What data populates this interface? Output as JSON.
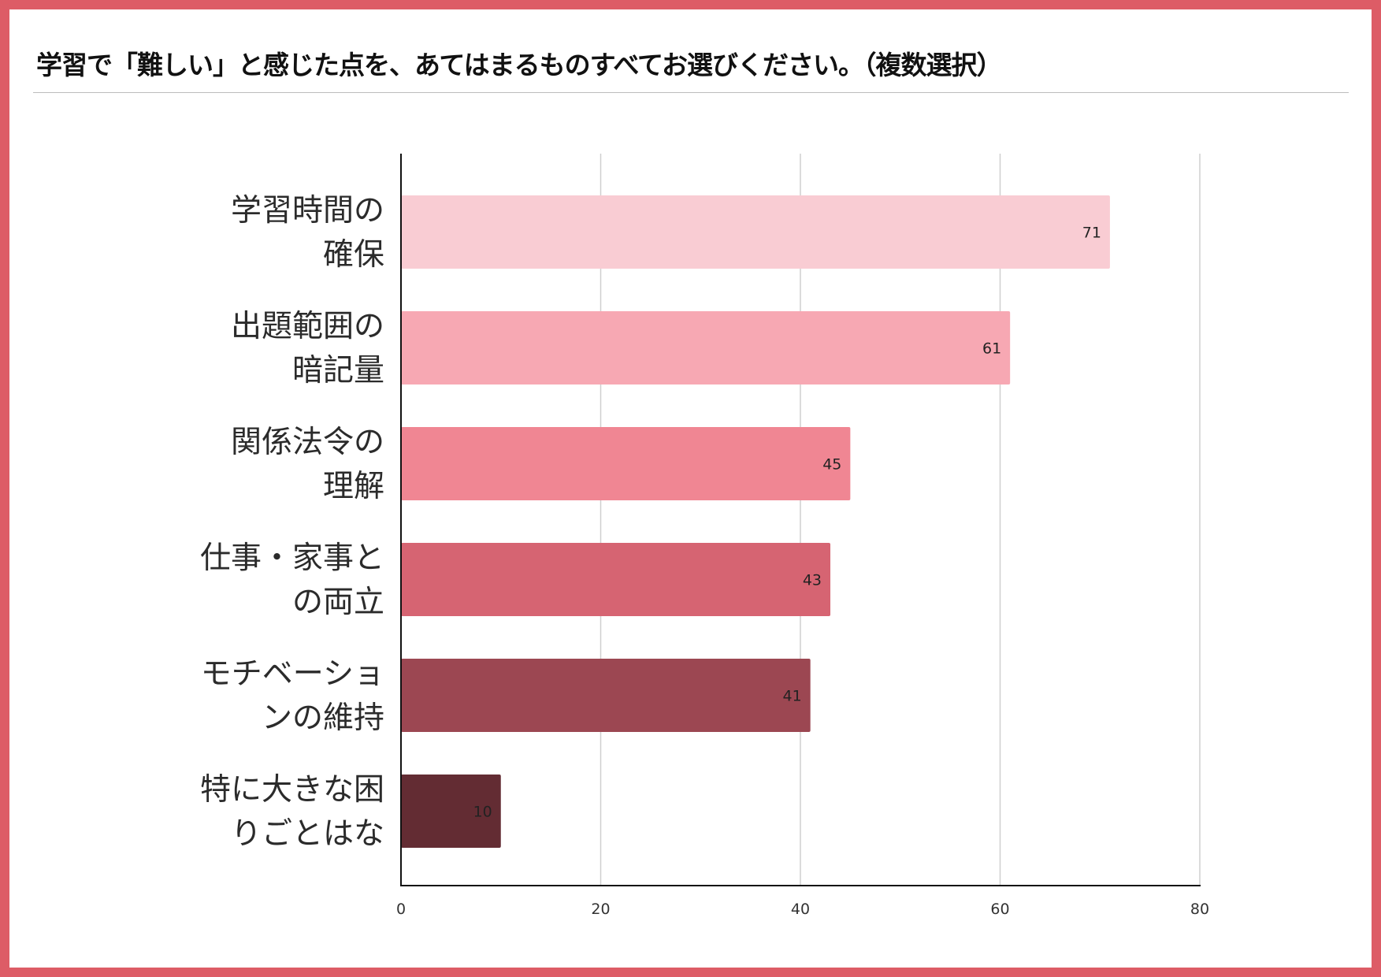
{
  "title": "学習で「難しい」と感じた点を、あてはまるものすべてお選びください。（複数選択）",
  "colors": {
    "frame": "#dd5c66",
    "bars": [
      "#f9ccd3",
      "#f7a8b3",
      "#f08693",
      "#d66472",
      "#9c4752",
      "#632c33"
    ]
  },
  "chart_data": {
    "type": "bar",
    "orientation": "horizontal",
    "title": "学習で「難しい」と感じた点を、あてはまるものすべてお選びください。（複数選択）",
    "categories": [
      [
        "学習時間の",
        "確保"
      ],
      [
        "出題範囲の",
        "暗記量"
      ],
      [
        "関係法令の",
        "理解"
      ],
      [
        "仕事・家事と",
        "の両立"
      ],
      [
        "モチベーショ",
        "ンの維持"
      ],
      [
        "特に大きな困",
        "りごとはな"
      ]
    ],
    "values": [
      71,
      61,
      45,
      43,
      41,
      10
    ],
    "xlim": [
      0,
      80
    ],
    "xticks": [
      0,
      20,
      40,
      60,
      80
    ],
    "grid": true,
    "legend": "none"
  }
}
